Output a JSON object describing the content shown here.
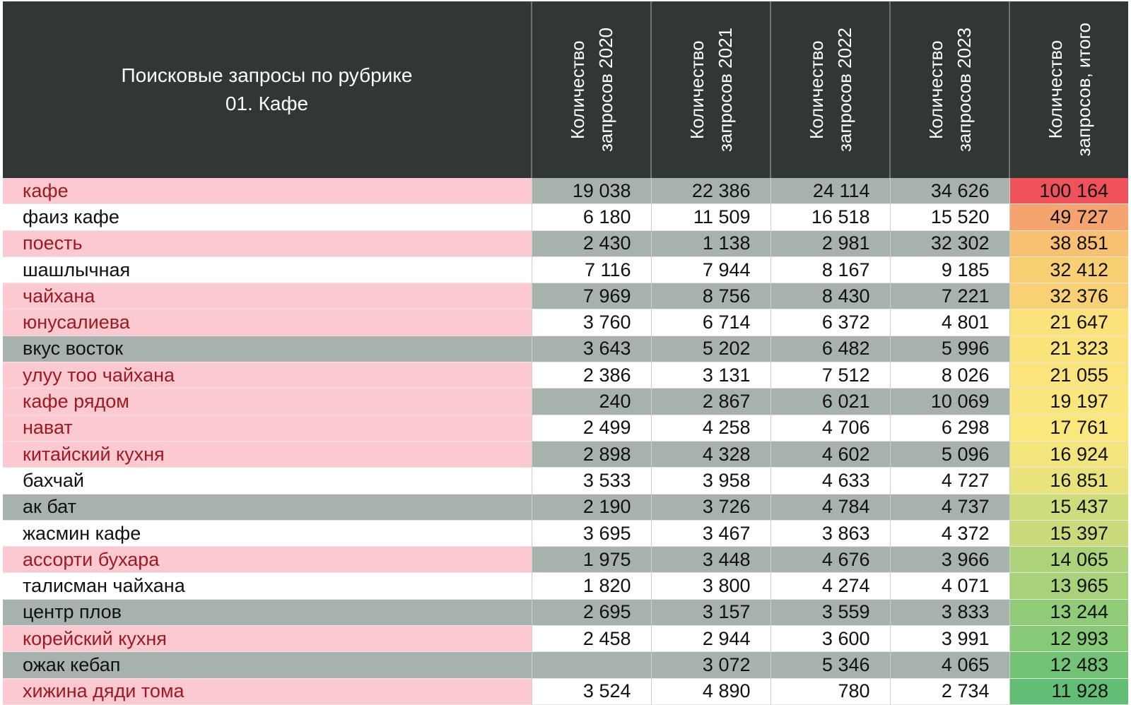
{
  "table": {
    "title_line1": "Поисковые запросы по рубрике",
    "title_line2": "01. Кафе",
    "columns": [
      {
        "line1": "Количество",
        "line2": "запросов 2020"
      },
      {
        "line1": "Количество",
        "line2": "запросов 2021"
      },
      {
        "line1": "Количество",
        "line2": "запросов 2022"
      },
      {
        "line1": "Количество",
        "line2": "запросов 2023"
      },
      {
        "line1": "Количество",
        "line2": "запросов, итого"
      }
    ],
    "rows": [
      {
        "style": "pink",
        "keyword": "кафе",
        "y2020": "19 038",
        "y2021": "22 386",
        "y2022": "24 114",
        "y2023": "34 626",
        "total": "100 164",
        "total_color": "#f0525a"
      },
      {
        "style": "white",
        "keyword": "фаиз кафе",
        "y2020": "6 180",
        "y2021": "11 509",
        "y2022": "16 518",
        "y2023": "15 520",
        "total": "49 727",
        "total_color": "#f6a46f"
      },
      {
        "style": "pink",
        "keyword": "поесть",
        "y2020": "2 430",
        "y2021": "1 138",
        "y2022": "2 981",
        "y2023": "32 302",
        "total": "38 851",
        "total_color": "#f8c172"
      },
      {
        "style": "white",
        "keyword": "шашлычная",
        "y2020": "7 116",
        "y2021": "7 944",
        "y2022": "8 167",
        "y2023": "9 185",
        "total": "32 412",
        "total_color": "#f9cf73"
      },
      {
        "style": "pink",
        "keyword": "чайхана",
        "y2020": "7 969",
        "y2021": "8 756",
        "y2022": "8 430",
        "y2023": "7 221",
        "total": "32 376",
        "total_color": "#f9d074"
      },
      {
        "style": "pinkw",
        "keyword": "юнусалиева",
        "y2020": "3 760",
        "y2021": "6 714",
        "y2022": "6 372",
        "y2023": "4 801",
        "total": "21 647",
        "total_color": "#fbe27a"
      },
      {
        "style": "gray",
        "keyword": "вкус восток",
        "y2020": "3 643",
        "y2021": "5 202",
        "y2022": "6 482",
        "y2023": "5 996",
        "total": "21 323",
        "total_color": "#fbe37b"
      },
      {
        "style": "pinkw",
        "keyword": "улуу тоо чайхана",
        "y2020": "2 386",
        "y2021": "3 131",
        "y2022": "7 512",
        "y2023": "8 026",
        "total": "21 055",
        "total_color": "#fbe47b"
      },
      {
        "style": "pink",
        "keyword": "кафе рядом",
        "y2020": "240",
        "y2021": "2 867",
        "y2022": "6 021",
        "y2023": "10 069",
        "total": "19 197",
        "total_color": "#fbe67c"
      },
      {
        "style": "pinkw",
        "keyword": "нават",
        "y2020": "2 499",
        "y2021": "4 258",
        "y2022": "4 706",
        "y2023": "6 298",
        "total": "17 761",
        "total_color": "#fae87d"
      },
      {
        "style": "pink",
        "keyword": "китайский кухня",
        "y2020": "2 898",
        "y2021": "4 328",
        "y2022": "4 602",
        "y2023": "5 096",
        "total": "16 924",
        "total_color": "#f2e57c"
      },
      {
        "style": "white",
        "keyword": "бахчай",
        "y2020": "3 533",
        "y2021": "3 958",
        "y2022": "4 633",
        "y2023": "4 727",
        "total": "16 851",
        "total_color": "#eae37c"
      },
      {
        "style": "gray",
        "keyword": "ак бат",
        "y2020": "2 190",
        "y2021": "3 726",
        "y2022": "4 784",
        "y2023": "4 737",
        "total": "15 437",
        "total_color": "#cfdc7b"
      },
      {
        "style": "white",
        "keyword": "жасмин кафе",
        "y2020": "3 695",
        "y2021": "3 467",
        "y2022": "3 863",
        "y2023": "4 372",
        "total": "15 397",
        "total_color": "#cbdb7b"
      },
      {
        "style": "pink",
        "keyword": "ассорти бухара",
        "y2020": "1 975",
        "y2021": "3 448",
        "y2022": "4 676",
        "y2023": "3 966",
        "total": "14 065",
        "total_color": "#acd37a"
      },
      {
        "style": "white",
        "keyword": "талисман чайхана",
        "y2020": "1 820",
        "y2021": "3 800",
        "y2022": "4 274",
        "y2023": "4 071",
        "total": "13 965",
        "total_color": "#a7d27a"
      },
      {
        "style": "gray",
        "keyword": "центр плов",
        "y2020": "2 695",
        "y2021": "3 157",
        "y2022": "3 559",
        "y2023": "3 833",
        "total": "13 244",
        "total_color": "#90cc78"
      },
      {
        "style": "pinkw",
        "keyword": "корейский кухня",
        "y2020": "2 458",
        "y2021": "2 944",
        "y2022": "3 600",
        "y2023": "3 991",
        "total": "12 993",
        "total_color": "#86c977"
      },
      {
        "style": "gray",
        "keyword": "ожак кебап",
        "y2020": "",
        "y2021": "3 072",
        "y2022": "5 346",
        "y2023": "4 065",
        "total": "12 483",
        "total_color": "#72c376"
      },
      {
        "style": "pinkw",
        "keyword": "хижина дяди тома",
        "y2020": "3 524",
        "y2021": "4 890",
        "y2022": "780",
        "y2023": "2 734",
        "total": "11 928",
        "total_color": "#63be75"
      }
    ]
  }
}
